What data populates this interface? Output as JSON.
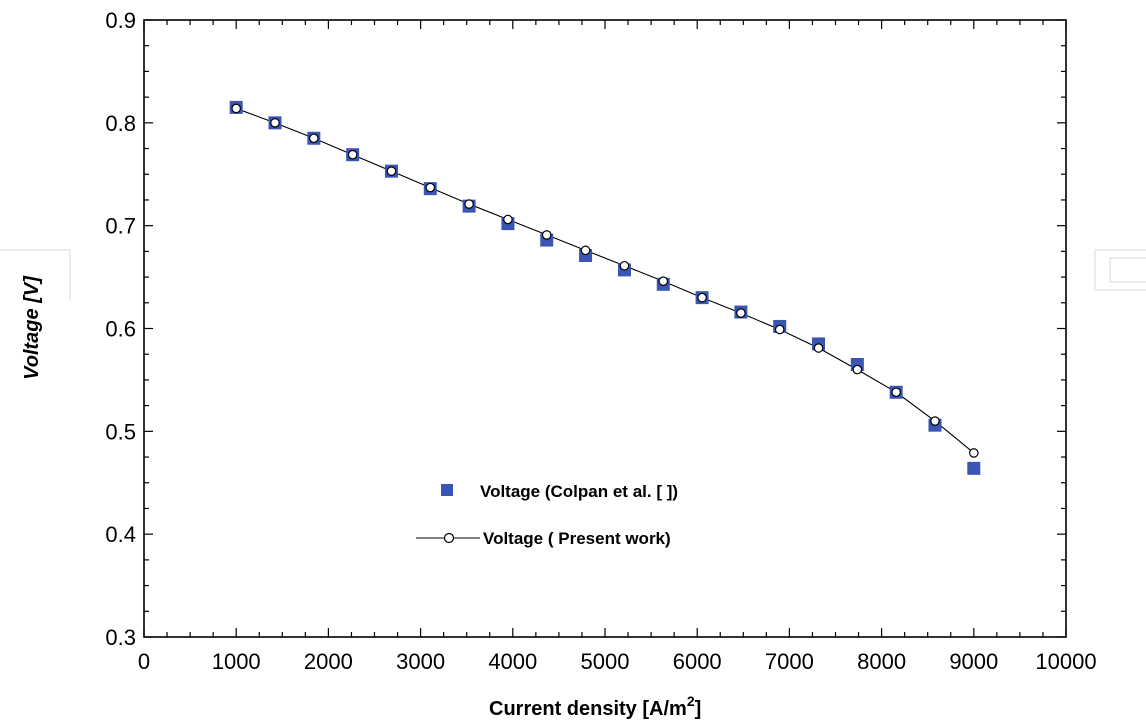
{
  "chart_data": {
    "type": "scatter",
    "xlabel": "Current density  [A/m",
    "xlabel_sup": "2",
    "xlabel_end": "]",
    "ylabel": "Voltage [V]",
    "xlim": [
      0,
      10000
    ],
    "ylim": [
      0.3,
      0.9
    ],
    "xticks": [
      0,
      1000,
      2000,
      3000,
      4000,
      5000,
      6000,
      7000,
      8000,
      9000,
      10000
    ],
    "yticks": [
      0.3,
      0.4,
      0.5,
      0.6,
      0.7,
      0.8,
      0.9
    ],
    "ytick_labels": [
      "0.3",
      "0.4",
      "0.5",
      "0.6",
      "0.7",
      "0.8",
      "0.9"
    ],
    "grid": false,
    "legend_position": "lower-left",
    "series": [
      {
        "name": "Voltage (Colpan et al. [   ])",
        "marker": "square",
        "line": false,
        "color": "#3a55b4",
        "x": [
          1000,
          1421,
          1842,
          2263,
          2684,
          3105,
          3526,
          3947,
          4368,
          4789,
          5211,
          5632,
          6053,
          6474,
          6895,
          7316,
          7737,
          8158,
          8579,
          9000
        ],
        "y": [
          0.815,
          0.8,
          0.785,
          0.769,
          0.753,
          0.736,
          0.719,
          0.702,
          0.686,
          0.671,
          0.657,
          0.643,
          0.63,
          0.616,
          0.602,
          0.585,
          0.565,
          0.538,
          0.506,
          0.464
        ]
      },
      {
        "name": "Voltage ( Present work)",
        "marker": "open-circle",
        "line": true,
        "color": "#000000",
        "x": [
          1000,
          1421,
          1842,
          2263,
          2684,
          3105,
          3526,
          3947,
          4368,
          4789,
          5211,
          5632,
          6053,
          6474,
          6895,
          7316,
          7737,
          8158,
          8579,
          9000
        ],
        "y": [
          0.814,
          0.8,
          0.785,
          0.769,
          0.753,
          0.737,
          0.721,
          0.706,
          0.691,
          0.676,
          0.661,
          0.646,
          0.63,
          0.615,
          0.599,
          0.581,
          0.56,
          0.538,
          0.51,
          0.479
        ]
      }
    ]
  }
}
